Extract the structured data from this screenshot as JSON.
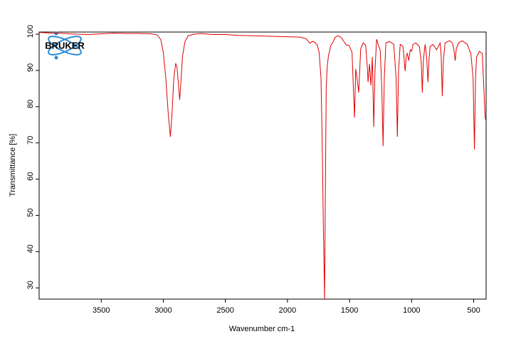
{
  "chart_data": {
    "type": "line",
    "logo": "BRUKER",
    "xlabel": "Wavenumber cm-1",
    "ylabel": "Transmittance [%]",
    "color": "#e00000",
    "xlim": [
      4000,
      400
    ],
    "ylim": [
      26.9,
      100.6
    ],
    "xticks": [
      3500,
      3000,
      2500,
      2000,
      1500,
      1000,
      500
    ],
    "yticks": [
      30,
      40,
      50,
      60,
      70,
      80,
      90,
      100
    ],
    "x": [
      4000,
      3900,
      3800,
      3700,
      3600,
      3500,
      3400,
      3300,
      3200,
      3100,
      3050,
      3020,
      3000,
      2980,
      2960,
      2943,
      2930,
      2915,
      2900,
      2890,
      2880,
      2868,
      2860,
      2845,
      2825,
      2800,
      2750,
      2700,
      2600,
      2500,
      2400,
      2300,
      2200,
      2100,
      2000,
      1900,
      1850,
      1820,
      1800,
      1780,
      1760,
      1745,
      1730,
      1720,
      1710,
      1701,
      1695,
      1688,
      1680,
      1670,
      1650,
      1630,
      1615,
      1590,
      1565,
      1545,
      1525,
      1505,
      1480,
      1460,
      1450,
      1440,
      1426,
      1410,
      1390,
      1370,
      1355,
      1351,
      1339,
      1328,
      1316,
      1305,
      1295,
      1282,
      1264,
      1253,
      1240,
      1230,
      1220,
      1207,
      1178,
      1144,
      1125,
      1115,
      1105,
      1092,
      1069,
      1060,
      1052,
      1043,
      1035,
      1023,
      1011,
      1000,
      989,
      966,
      937,
      922,
      914,
      905,
      891,
      879,
      868,
      860,
      851,
      828,
      799,
      770,
      762,
      753,
      744,
      730,
      695,
      672,
      660,
      649,
      640,
      621,
      592,
      552,
      523,
      505,
      494,
      485,
      477,
      454,
      431,
      418,
      408,
      400
    ],
    "values": [
      100.5,
      100.3,
      100.2,
      100.0,
      99.9,
      100.1,
      100.3,
      100.2,
      100.2,
      100.1,
      99.8,
      98.5,
      95,
      88,
      78,
      71.7,
      78,
      88,
      92,
      91,
      87,
      81.9,
      86,
      94,
      98,
      99.6,
      100,
      100.2,
      99.9,
      99.9,
      99.7,
      99.6,
      99.5,
      99.4,
      99.3,
      99.2,
      98.8,
      97.5,
      98,
      97.8,
      97,
      95,
      88,
      70,
      45,
      26.9,
      55,
      85,
      91,
      94,
      97,
      98,
      99.2,
      99.6,
      99,
      98,
      97,
      97,
      95,
      77,
      90.4,
      88,
      83.9,
      96,
      97.6,
      97,
      90,
      86.8,
      91.8,
      85.9,
      93.7,
      74.4,
      90,
      98.6,
      96.6,
      95.6,
      85,
      69.1,
      88,
      97.6,
      98,
      97.2,
      88,
      71.7,
      90,
      97.2,
      96.6,
      93,
      89.8,
      94,
      94.7,
      92.7,
      95.7,
      95.3,
      97.2,
      97.6,
      96.6,
      92,
      83.9,
      93,
      97.2,
      93.7,
      86.8,
      93,
      96.6,
      97.2,
      95.7,
      97.6,
      94,
      82.9,
      93,
      97.6,
      98.2,
      97.6,
      96,
      92.7,
      96,
      97.6,
      98.2,
      97.2,
      94.7,
      88,
      68.2,
      88,
      93.7,
      95.3,
      94.7,
      85,
      77,
      76
    ]
  }
}
